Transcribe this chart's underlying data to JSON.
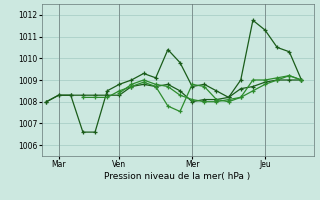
{
  "xlabel": "Pression niveau de la mer( hPa )",
  "background_color": "#cce8e0",
  "grid_color": "#aacfc8",
  "line_color_dark": "#1a5c1a",
  "line_color_mid": "#2d8c2d",
  "ylim": [
    1005.5,
    1012.5
  ],
  "yticks": [
    1006,
    1007,
    1008,
    1009,
    1010,
    1011,
    1012
  ],
  "day_labels": [
    "Mar",
    "Ven",
    "Mer",
    "Jeu"
  ],
  "day_positions": [
    0.5,
    3,
    6,
    9
  ],
  "xlim": [
    -0.2,
    11.0
  ],
  "series1_x": [
    0.0,
    0.5,
    1.0,
    1.5,
    2.0,
    2.5,
    3.0,
    3.5,
    4.0,
    4.5,
    5.0,
    5.5,
    6.0,
    6.5,
    7.0,
    7.5,
    8.0,
    8.5,
    9.0,
    9.5,
    10.0,
    10.5
  ],
  "series1_y": [
    1008.0,
    1008.3,
    1008.3,
    1006.6,
    1006.6,
    1008.5,
    1008.8,
    1009.0,
    1009.3,
    1009.1,
    1010.4,
    1009.8,
    1008.7,
    1008.8,
    1008.5,
    1008.2,
    1009.0,
    1011.75,
    1011.3,
    1010.5,
    1010.3,
    1009.0
  ],
  "series2_x": [
    0.0,
    0.5,
    1.0,
    1.5,
    2.0,
    2.5,
    3.0,
    3.5,
    4.0,
    4.5,
    5.0,
    5.5,
    6.0,
    6.5,
    7.0,
    7.5,
    8.0,
    8.5,
    9.0,
    9.5,
    10.0,
    10.5
  ],
  "series2_y": [
    1008.0,
    1008.3,
    1008.3,
    1008.3,
    1008.3,
    1008.3,
    1008.3,
    1008.7,
    1008.8,
    1008.7,
    1008.8,
    1008.5,
    1008.0,
    1008.1,
    1008.1,
    1008.2,
    1008.6,
    1008.7,
    1008.9,
    1009.0,
    1009.0,
    1009.0
  ],
  "series3_x": [
    1.5,
    2.0,
    2.5,
    3.0,
    3.5,
    4.0,
    4.5,
    5.0,
    5.5,
    6.0,
    6.5,
    7.0,
    7.5,
    8.0,
    8.5,
    9.0,
    9.5,
    10.0,
    10.5
  ],
  "series3_y": [
    1008.2,
    1008.2,
    1008.2,
    1008.5,
    1008.7,
    1008.9,
    1008.7,
    1007.8,
    1007.55,
    1008.8,
    1008.7,
    1008.1,
    1008.0,
    1008.2,
    1009.0,
    1009.0,
    1009.1,
    1009.2,
    1009.0
  ],
  "series4_x": [
    3.0,
    3.5,
    4.0,
    4.5,
    5.0,
    5.5,
    6.0,
    6.5,
    7.0,
    7.5,
    8.0,
    8.5,
    9.0,
    9.5,
    10.0,
    10.5
  ],
  "series4_y": [
    1008.4,
    1008.8,
    1009.0,
    1008.8,
    1008.7,
    1008.3,
    1008.1,
    1008.0,
    1008.0,
    1008.1,
    1008.2,
    1008.5,
    1008.8,
    1009.0,
    1009.2,
    1009.0
  ],
  "vline_positions": [
    0.5,
    3,
    6,
    9
  ],
  "vline_color": "#778888"
}
